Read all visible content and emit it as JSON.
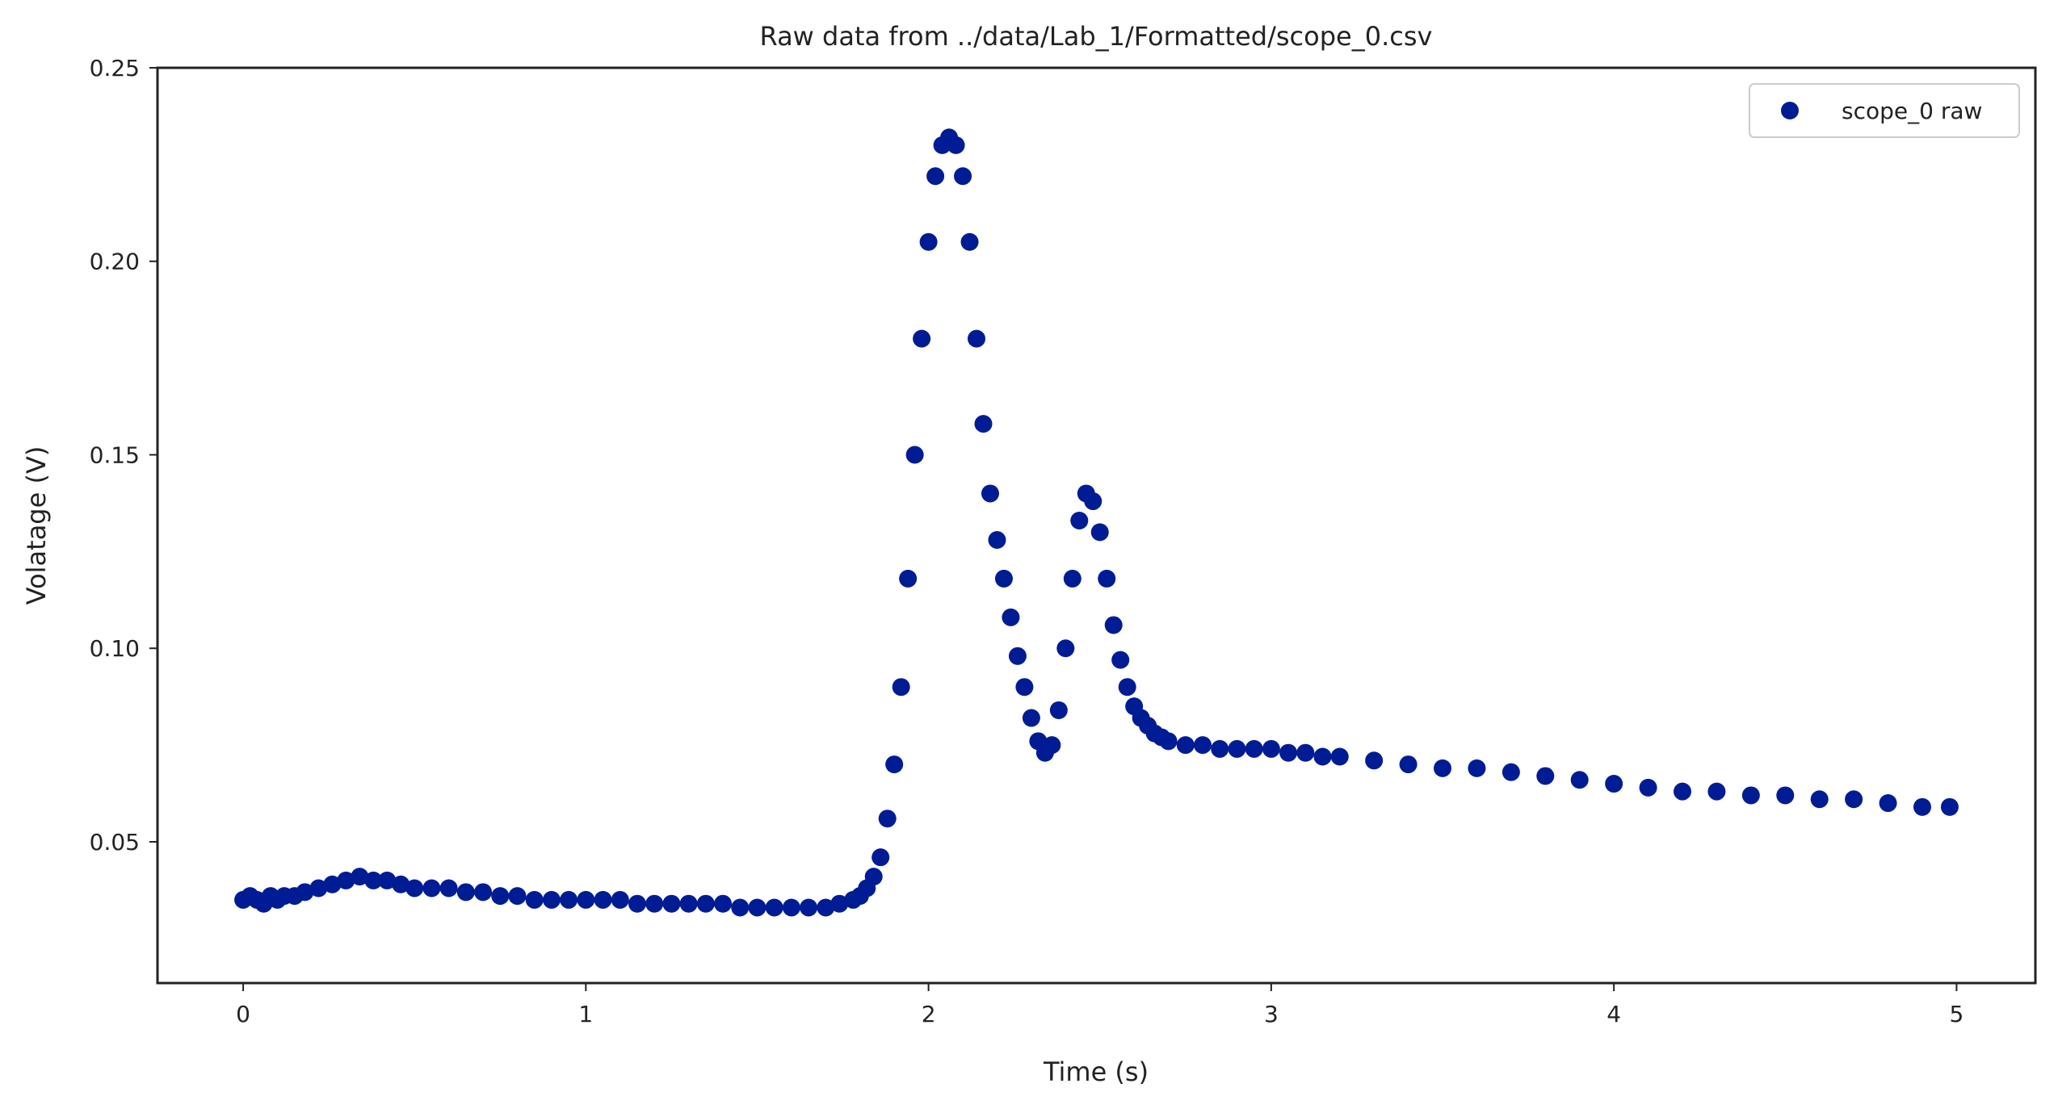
{
  "chart_data": {
    "type": "scatter",
    "title": "Raw data from ../data/Lab_1/Formatted/scope_0.csv",
    "xlabel": "Time (s)",
    "ylabel": "Volatage (V)",
    "xlim": [
      -0.25,
      5.23
    ],
    "ylim": [
      0.0135,
      0.25
    ],
    "xticks": [
      {
        "value": 0,
        "label": "0"
      },
      {
        "value": 1,
        "label": "1"
      },
      {
        "value": 2,
        "label": "2"
      },
      {
        "value": 3,
        "label": "3"
      },
      {
        "value": 4,
        "label": "4"
      },
      {
        "value": 5,
        "label": "5"
      }
    ],
    "yticks": [
      {
        "value": 0.05,
        "label": "0.05"
      },
      {
        "value": 0.1,
        "label": "0.10"
      },
      {
        "value": 0.15,
        "label": "0.15"
      },
      {
        "value": 0.2,
        "label": "0.20"
      },
      {
        "value": 0.25,
        "label": "0.25"
      }
    ],
    "grid": false,
    "legend_position": "top-right",
    "series": [
      {
        "name": "scope_0 raw",
        "color": "#001c94",
        "x": [
          0.0,
          0.02,
          0.04,
          0.06,
          0.08,
          0.1,
          0.12,
          0.15,
          0.18,
          0.22,
          0.26,
          0.3,
          0.34,
          0.38,
          0.42,
          0.46,
          0.5,
          0.55,
          0.6,
          0.65,
          0.7,
          0.75,
          0.8,
          0.85,
          0.9,
          0.95,
          1.0,
          1.05,
          1.1,
          1.15,
          1.2,
          1.25,
          1.3,
          1.35,
          1.4,
          1.45,
          1.5,
          1.55,
          1.6,
          1.65,
          1.7,
          1.74,
          1.78,
          1.8,
          1.82,
          1.84,
          1.86,
          1.88,
          1.9,
          1.92,
          1.94,
          1.96,
          1.98,
          2.0,
          2.02,
          2.04,
          2.06,
          2.08,
          2.1,
          2.12,
          2.14,
          2.16,
          2.18,
          2.2,
          2.22,
          2.24,
          2.26,
          2.28,
          2.3,
          2.32,
          2.34,
          2.36,
          2.38,
          2.4,
          2.42,
          2.44,
          2.46,
          2.48,
          2.5,
          2.52,
          2.54,
          2.56,
          2.58,
          2.6,
          2.62,
          2.64,
          2.66,
          2.68,
          2.7,
          2.75,
          2.8,
          2.85,
          2.9,
          2.95,
          3.0,
          3.05,
          3.1,
          3.15,
          3.2,
          3.3,
          3.4,
          3.5,
          3.6,
          3.7,
          3.8,
          3.9,
          4.0,
          4.1,
          4.2,
          4.3,
          4.4,
          4.5,
          4.6,
          4.7,
          4.8,
          4.9,
          4.98
        ],
        "y": [
          0.035,
          0.036,
          0.035,
          0.034,
          0.036,
          0.035,
          0.036,
          0.036,
          0.037,
          0.038,
          0.039,
          0.04,
          0.041,
          0.04,
          0.04,
          0.039,
          0.038,
          0.038,
          0.038,
          0.037,
          0.037,
          0.036,
          0.036,
          0.035,
          0.035,
          0.035,
          0.035,
          0.035,
          0.035,
          0.034,
          0.034,
          0.034,
          0.034,
          0.034,
          0.034,
          0.033,
          0.033,
          0.033,
          0.033,
          0.033,
          0.033,
          0.034,
          0.035,
          0.036,
          0.038,
          0.041,
          0.046,
          0.056,
          0.07,
          0.09,
          0.118,
          0.15,
          0.18,
          0.205,
          0.222,
          0.23,
          0.232,
          0.23,
          0.222,
          0.205,
          0.18,
          0.158,
          0.14,
          0.128,
          0.118,
          0.108,
          0.098,
          0.09,
          0.082,
          0.076,
          0.073,
          0.075,
          0.084,
          0.1,
          0.118,
          0.133,
          0.14,
          0.138,
          0.13,
          0.118,
          0.106,
          0.097,
          0.09,
          0.085,
          0.082,
          0.08,
          0.078,
          0.077,
          0.076,
          0.075,
          0.075,
          0.074,
          0.074,
          0.074,
          0.074,
          0.073,
          0.073,
          0.072,
          0.072,
          0.071,
          0.07,
          0.069,
          0.069,
          0.068,
          0.067,
          0.066,
          0.065,
          0.064,
          0.063,
          0.063,
          0.062,
          0.062,
          0.061,
          0.061,
          0.06,
          0.059,
          0.059
        ]
      }
    ]
  }
}
